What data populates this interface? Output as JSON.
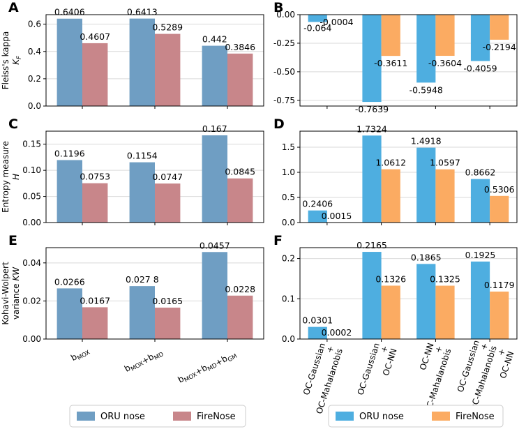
{
  "legend_left": {
    "items": [
      {
        "label": "ORU nose",
        "color": "#6f9ec3"
      },
      {
        "label": "FireNose",
        "color": "#c8868a"
      }
    ]
  },
  "legend_right": {
    "items": [
      {
        "label": "ORU nose",
        "color": "#4eaee0"
      },
      {
        "label": "FireNose",
        "color": "#fbab62"
      }
    ]
  },
  "chart_data": [
    {
      "panel": "A",
      "type": "bar",
      "title": "",
      "ylabel": "Fleiss's kappa",
      "ylabel_symbol": "K_F",
      "categories": [
        "b_MOX",
        "b_MOX+b_MD",
        "b_MOX+b_MD+b_GM"
      ],
      "series": [
        {
          "name": "ORU nose",
          "values": [
            0.6406,
            0.6413,
            0.442
          ],
          "labels": [
            "0.6406",
            "0.6413",
            "0.442"
          ]
        },
        {
          "name": "FireNose",
          "values": [
            0.4607,
            0.5289,
            0.3846
          ],
          "labels": [
            "0.4607",
            "0.5289",
            "0.3846"
          ]
        }
      ],
      "ylim": [
        0,
        0.67
      ],
      "yticks": [
        "0.0",
        "0.2",
        "0.4",
        "0.6"
      ],
      "grid": true
    },
    {
      "panel": "B",
      "type": "bar",
      "title": "",
      "ylabel": "",
      "categories": [
        "OC-Gaussian + OC-Mahalanobis",
        "OC-Gaussian + OC-NN",
        "OC-NN + OC-Mahalanobis",
        "OC-Gaussian + OC-Mahalanobis + OC-NN"
      ],
      "series": [
        {
          "name": "ORU nose",
          "values": [
            -0.064,
            -0.7639,
            -0.5948,
            -0.4059
          ],
          "labels": [
            "-0.064",
            "-0.7639",
            "-0.5948",
            "-0.4059"
          ]
        },
        {
          "name": "FireNose",
          "values": [
            -0.0004,
            -0.3611,
            -0.3604,
            -0.2194
          ],
          "labels": [
            "-0.0004",
            "-0.3611",
            "-0.3604",
            "-0.2194"
          ]
        }
      ],
      "ylim": [
        -0.8,
        0.0
      ],
      "yticks": [
        "0.00",
        "-0.25",
        "-0.50",
        "-0.75"
      ],
      "grid": true
    },
    {
      "panel": "C",
      "type": "bar",
      "title": "",
      "ylabel": "Entropy measure",
      "ylabel_symbol": "H",
      "categories": [
        "b_MOX",
        "b_MOX+b_MD",
        "b_MOX+b_MD+b_GM"
      ],
      "series": [
        {
          "name": "ORU nose",
          "values": [
            0.1196,
            0.1154,
            0.167
          ],
          "labels": [
            "0.1196",
            "0.1154",
            "0.167"
          ]
        },
        {
          "name": "FireNose",
          "values": [
            0.0753,
            0.0747,
            0.0845
          ],
          "labels": [
            "0.0753",
            "0.0747",
            "0.0845"
          ]
        }
      ],
      "ylim": [
        0,
        0.175
      ],
      "yticks": [
        "0.00",
        "0.05",
        "0.10",
        "0.15"
      ],
      "grid": true
    },
    {
      "panel": "D",
      "type": "bar",
      "title": "",
      "ylabel": "",
      "categories": [
        "OC-Gaussian + OC-Mahalanobis",
        "OC-Gaussian + OC-NN",
        "OC-NN + OC-Mahalanobis",
        "OC-Gaussian + OC-Mahalanobis + OC-NN"
      ],
      "series": [
        {
          "name": "ORU nose",
          "values": [
            0.2406,
            1.7324,
            1.4918,
            0.8662
          ],
          "labels": [
            "0.2406",
            "1.7324",
            "1.4918",
            "0.8662"
          ]
        },
        {
          "name": "FireNose",
          "values": [
            0.0015,
            1.0612,
            1.0597,
            0.5306
          ],
          "labels": [
            "0.0015",
            "1.0612",
            "1.0597",
            "0.5306"
          ]
        }
      ],
      "ylim": [
        0,
        1.82
      ],
      "yticks": [
        "0.0",
        "0.5",
        "1.0",
        "1.5"
      ],
      "grid": true
    },
    {
      "panel": "E",
      "type": "bar",
      "title": "",
      "ylabel": "Kohavi-Wolpert",
      "ylabel2": "variance",
      "ylabel_symbol": "KW",
      "categories": [
        "b_MOX",
        "b_MOX+b_MD",
        "b_MOX+b_MD+b_GM"
      ],
      "series": [
        {
          "name": "ORU nose",
          "values": [
            0.0266,
            0.0278,
            0.0457
          ],
          "labels": [
            "0.0266",
            "0.027 8",
            "0.0457"
          ]
        },
        {
          "name": "FireNose",
          "values": [
            0.0167,
            0.0165,
            0.0228
          ],
          "labels": [
            "0.0167",
            "0.0165",
            "0.0228"
          ]
        }
      ],
      "ylim": [
        0,
        0.048
      ],
      "yticks": [
        "0.00",
        "0.02",
        "0.04"
      ],
      "grid": true
    },
    {
      "panel": "F",
      "type": "bar",
      "title": "",
      "ylabel": "",
      "categories": [
        "OC-Gaussian + OC-Mahalanobis",
        "OC-Gaussian + OC-NN",
        "OC-NN + OC-Mahalanobis",
        "OC-Gaussian + OC-Mahalanobis + OC-NN"
      ],
      "series": [
        {
          "name": "ORU nose",
          "values": [
            0.0301,
            0.2165,
            0.1865,
            0.1925
          ],
          "labels": [
            "0.0301",
            "0.2165",
            "0.1865",
            "0.1925"
          ]
        },
        {
          "name": "FireNose",
          "values": [
            0.0002,
            0.1326,
            0.1325,
            0.1179
          ],
          "labels": [
            "0.0002",
            "0.1326",
            "0.1325",
            "0.1179"
          ]
        }
      ],
      "ylim": [
        0,
        0.227
      ],
      "yticks": [
        "0.0",
        "0.1",
        "0.2"
      ],
      "grid": true
    }
  ]
}
